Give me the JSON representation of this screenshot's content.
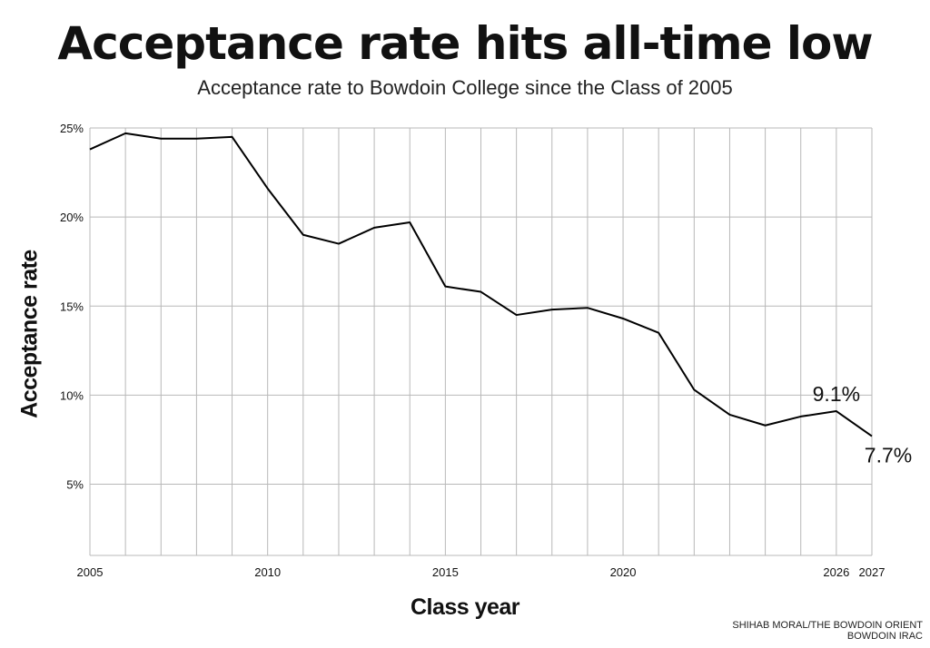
{
  "title": "Acceptance rate hits all-time low",
  "subtitle": "Acceptance rate to Bowdoin College since the Class of 2005",
  "credit": [
    "SHIHAB MORAL/THE BOWDOIN ORIENT",
    "BOWDOIN IRAC"
  ],
  "chart_data": {
    "type": "line",
    "title": "Acceptance rate hits all-time low",
    "subtitle": "Acceptance rate to Bowdoin College since the Class of 2005",
    "xlabel": "Class year",
    "ylabel": "Acceptance rate",
    "x": [
      2005,
      2006,
      2007,
      2008,
      2009,
      2010,
      2011,
      2012,
      2013,
      2014,
      2015,
      2016,
      2017,
      2018,
      2019,
      2020,
      2021,
      2022,
      2023,
      2024,
      2025,
      2026,
      2027
    ],
    "series": [
      {
        "values": [
          23.8,
          24.7,
          24.4,
          24.4,
          24.5,
          21.6,
          19.0,
          18.5,
          19.4,
          19.7,
          16.1,
          15.8,
          14.5,
          14.8,
          14.9,
          14.3,
          13.5,
          10.3,
          8.9,
          8.3,
          8.8,
          9.1,
          7.7
        ],
        "color": "#000000"
      }
    ],
    "xlim": [
      2005,
      2027
    ],
    "ylim": [
      1,
      25
    ],
    "x_ticks": [
      "2005",
      "2010",
      "2015",
      "2020",
      "2026",
      "2027"
    ],
    "y_ticks": [
      "25%",
      "20%",
      "15%",
      "10%",
      "5%"
    ],
    "annotations": [
      {
        "x": 2026,
        "label": "9.1%"
      },
      {
        "x": 2027,
        "label": "7.7%"
      }
    ],
    "grid": true,
    "legend": "none"
  }
}
